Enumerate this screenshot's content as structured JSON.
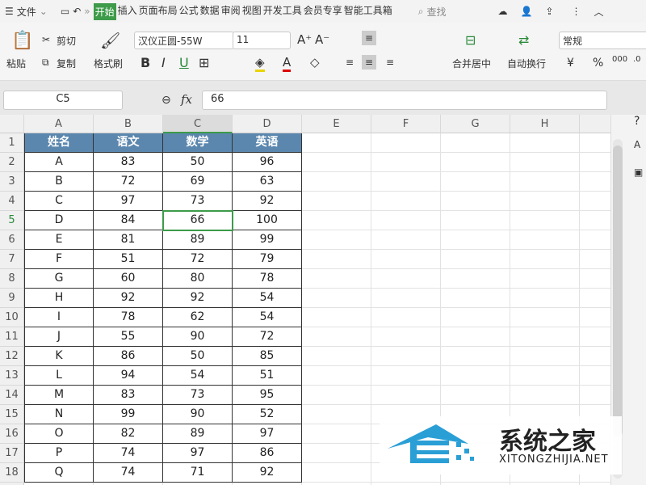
{
  "menu": {
    "file": "文件",
    "tabs": [
      "开始",
      "插入",
      "页面布局",
      "公式",
      "数据",
      "审阅",
      "视图",
      "开发工具",
      "会员专享",
      "智能工具箱"
    ],
    "search": "查找"
  },
  "ribbon": {
    "paste": "粘贴",
    "cut": "剪切",
    "copy": "复制",
    "format_painter": "格式刷",
    "font": "汉仪正圆-55W",
    "size": "11",
    "bold": "B",
    "italic": "I",
    "underline": "U",
    "merge": "合并居中",
    "wrap": "自动换行",
    "number_format": "常规",
    "currency": "¥",
    "percent": "%"
  },
  "formula_bar": {
    "cell_ref": "C5",
    "fx": "fx",
    "value": "66"
  },
  "columns": [
    "A",
    "B",
    "C",
    "D",
    "E",
    "F",
    "G",
    "H"
  ],
  "table": {
    "headers": [
      "姓名",
      "语文",
      "数学",
      "英语"
    ],
    "rows": [
      [
        "A",
        "83",
        "50",
        "96"
      ],
      [
        "B",
        "72",
        "69",
        "63"
      ],
      [
        "C",
        "97",
        "73",
        "92"
      ],
      [
        "D",
        "84",
        "66",
        "100"
      ],
      [
        "E",
        "81",
        "89",
        "99"
      ],
      [
        "F",
        "51",
        "72",
        "79"
      ],
      [
        "G",
        "60",
        "80",
        "78"
      ],
      [
        "H",
        "92",
        "92",
        "54"
      ],
      [
        "I",
        "78",
        "62",
        "54"
      ],
      [
        "J",
        "55",
        "90",
        "72"
      ],
      [
        "K",
        "86",
        "50",
        "85"
      ],
      [
        "L",
        "94",
        "54",
        "51"
      ],
      [
        "M",
        "83",
        "73",
        "95"
      ],
      [
        "N",
        "99",
        "90",
        "52"
      ],
      [
        "O",
        "82",
        "89",
        "97"
      ],
      [
        "P",
        "74",
        "97",
        "86"
      ],
      [
        "Q",
        "74",
        "71",
        "92"
      ]
    ]
  },
  "selected_cell": "C5",
  "colors": {
    "header_fill": "#5b87ae",
    "accent": "#3d9b4a",
    "selection": "#3d9b4a"
  },
  "watermark": {
    "cn": "系统之家",
    "en": "XITONGZHIJIA.NET"
  }
}
